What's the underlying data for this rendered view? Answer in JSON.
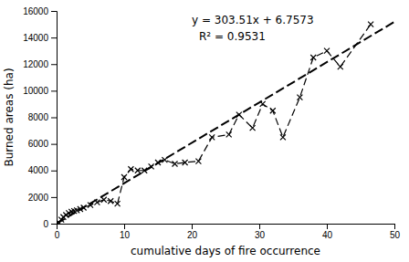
{
  "chart_data": {
    "type": "line",
    "xlabel": "cumulative days of fire occurrence",
    "ylabel": "Burned areas (ha)",
    "annotations": [
      "y = 303.51x + 6.7573",
      "R² = 0.9531"
    ],
    "xlim": [
      0,
      50
    ],
    "ylim": [
      0,
      16000
    ],
    "xticks": [
      0,
      10,
      20,
      30,
      40,
      50
    ],
    "yticks": [
      0,
      2000,
      4000,
      6000,
      8000,
      10000,
      12000,
      14000,
      16000
    ],
    "grid": false,
    "series": [
      {
        "color": "#000000",
        "line_style": "dashed",
        "x": [
          0,
          50
        ],
        "values": [
          6.7573,
          15182.2573
        ]
      },
      {
        "color": "#000000",
        "line_style": "dashed",
        "marker": "x",
        "x": [
          0.3,
          0.7,
          1.0,
          1.4,
          1.8,
          2.2,
          2.6,
          3.0,
          3.5,
          4.0,
          5.0,
          6.0,
          7.0,
          8.0,
          9.0,
          10.0,
          11.0,
          12.0,
          13.0,
          14.0,
          15.0,
          16.0,
          17.5,
          19.0,
          21.0,
          23.0,
          25.5,
          27.0,
          29.0,
          30.5,
          32.0,
          33.5,
          36.0,
          38.0,
          40.0,
          42.0,
          46.5
        ],
        "values": [
          100,
          300,
          500,
          650,
          800,
          900,
          950,
          1000,
          1100,
          1200,
          1400,
          1600,
          1800,
          1700,
          1500,
          3500,
          4100,
          4000,
          4000,
          4300,
          4600,
          4800,
          4500,
          4600,
          4700,
          6500,
          6700,
          8200,
          7200,
          9000,
          8500,
          6500,
          9500,
          12500,
          13000,
          11800,
          15000
        ]
      }
    ]
  }
}
